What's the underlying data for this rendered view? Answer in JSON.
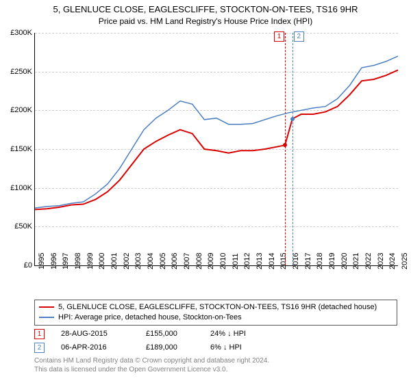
{
  "title": "5, GLENLUCE CLOSE, EAGLESCLIFFE, STOCKTON-ON-TEES, TS16 9HR",
  "subtitle": "Price paid vs. HM Land Registry's House Price Index (HPI)",
  "chart": {
    "type": "line",
    "background_color": "#ffffff",
    "grid_color": "#cccccc",
    "axis_color": "#000000",
    "ylim": [
      0,
      300000
    ],
    "ytick_step": 50000,
    "yticks": [
      "£0",
      "£50K",
      "£100K",
      "£150K",
      "£200K",
      "£250K",
      "£300K"
    ],
    "xlim": [
      1995,
      2025
    ],
    "xticks": [
      "1995",
      "1996",
      "1997",
      "1998",
      "1999",
      "2000",
      "2001",
      "2002",
      "2003",
      "2004",
      "2005",
      "2006",
      "2007",
      "2008",
      "2009",
      "2010",
      "2011",
      "2012",
      "2013",
      "2014",
      "2015",
      "2016",
      "2017",
      "2018",
      "2019",
      "2020",
      "2021",
      "2022",
      "2023",
      "2024",
      "2025"
    ],
    "label_fontsize": 11,
    "title_fontsize": 13,
    "series": [
      {
        "name": "property",
        "label": "5, GLENLUCE CLOSE, EAGLESCLIFFE, STOCKTON-ON-TEES, TS16 9HR (detached house)",
        "color": "#d90000",
        "line_width": 2,
        "points": [
          [
            1995,
            72000
          ],
          [
            1996,
            73000
          ],
          [
            1997,
            75000
          ],
          [
            1998,
            78000
          ],
          [
            1999,
            79000
          ],
          [
            2000,
            85000
          ],
          [
            2001,
            95000
          ],
          [
            2002,
            110000
          ],
          [
            2003,
            130000
          ],
          [
            2004,
            150000
          ],
          [
            2005,
            160000
          ],
          [
            2006,
            168000
          ],
          [
            2007,
            175000
          ],
          [
            2008,
            170000
          ],
          [
            2009,
            150000
          ],
          [
            2010,
            148000
          ],
          [
            2011,
            145000
          ],
          [
            2012,
            148000
          ],
          [
            2013,
            148000
          ],
          [
            2014,
            150000
          ],
          [
            2015.66,
            155000
          ],
          [
            2016.27,
            189000
          ],
          [
            2017,
            195000
          ],
          [
            2018,
            195000
          ],
          [
            2019,
            198000
          ],
          [
            2020,
            205000
          ],
          [
            2021,
            220000
          ],
          [
            2022,
            238000
          ],
          [
            2023,
            240000
          ],
          [
            2024,
            245000
          ],
          [
            2025,
            252000
          ]
        ]
      },
      {
        "name": "hpi",
        "label": "HPI: Average price, detached house, Stockton-on-Tees",
        "color": "#4a7ec2",
        "line_width": 1.5,
        "points": [
          [
            1995,
            74000
          ],
          [
            1996,
            76000
          ],
          [
            1997,
            77000
          ],
          [
            1998,
            80000
          ],
          [
            1999,
            82000
          ],
          [
            2000,
            92000
          ],
          [
            2001,
            105000
          ],
          [
            2002,
            125000
          ],
          [
            2003,
            150000
          ],
          [
            2004,
            175000
          ],
          [
            2005,
            190000
          ],
          [
            2006,
            200000
          ],
          [
            2007,
            212000
          ],
          [
            2008,
            208000
          ],
          [
            2009,
            188000
          ],
          [
            2010,
            190000
          ],
          [
            2011,
            182000
          ],
          [
            2012,
            182000
          ],
          [
            2013,
            183000
          ],
          [
            2014,
            188000
          ],
          [
            2015,
            193000
          ],
          [
            2016,
            197000
          ],
          [
            2017,
            200000
          ],
          [
            2018,
            203000
          ],
          [
            2019,
            205000
          ],
          [
            2020,
            215000
          ],
          [
            2021,
            232000
          ],
          [
            2022,
            255000
          ],
          [
            2023,
            258000
          ],
          [
            2024,
            263000
          ],
          [
            2025,
            270000
          ]
        ]
      }
    ],
    "markers": [
      {
        "n": "1",
        "x": 2015.66,
        "y": 155000,
        "color": "#d90000"
      },
      {
        "n": "2",
        "x": 2016.27,
        "y": 189000,
        "color": "#4a7ec2"
      }
    ]
  },
  "legend": {
    "border_color": "#555555",
    "items": [
      {
        "color": "#d90000",
        "label": "5, GLENLUCE CLOSE, EAGLESCLIFFE, STOCKTON-ON-TEES, TS16 9HR (detached house)"
      },
      {
        "color": "#4a7ec2",
        "label": "HPI: Average price, detached house, Stockton-on-Tees"
      }
    ]
  },
  "events": [
    {
      "n": "1",
      "color": "#d90000",
      "date": "28-AUG-2015",
      "price": "£155,000",
      "diff": "24% ↓ HPI"
    },
    {
      "n": "2",
      "color": "#4a7ec2",
      "date": "06-APR-2016",
      "price": "£189,000",
      "diff": "6% ↓ HPI"
    }
  ],
  "footer": {
    "line1": "Contains HM Land Registry data © Crown copyright and database right 2024.",
    "line2": "This data is licensed under the Open Government Licence v3.0."
  }
}
